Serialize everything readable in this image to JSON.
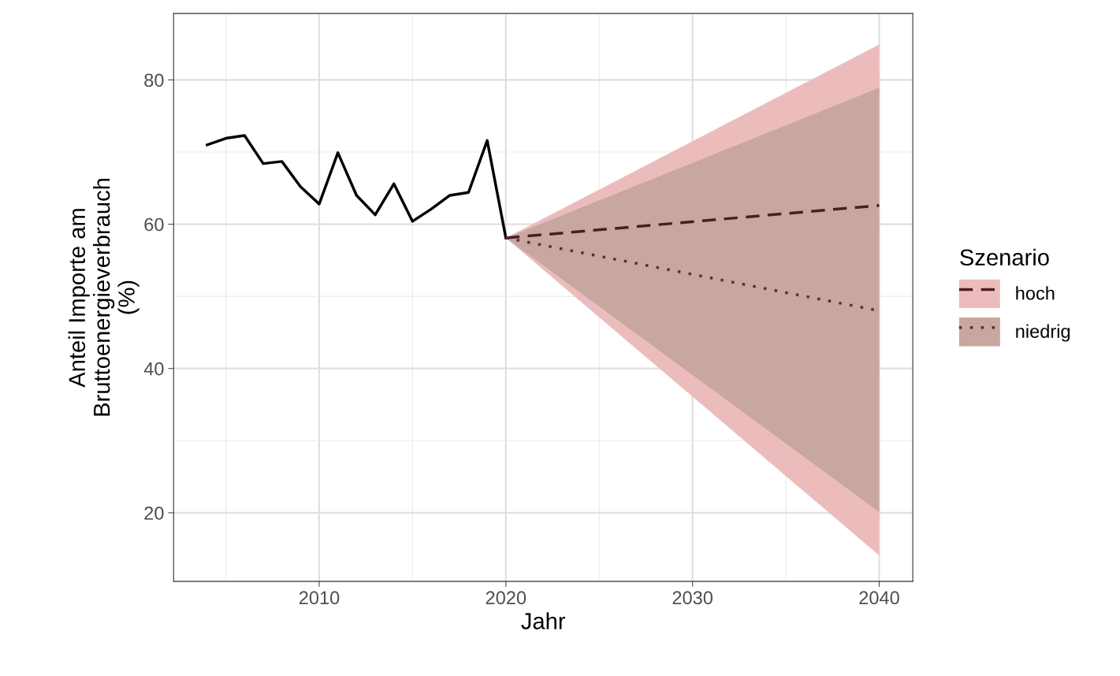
{
  "chart_data": {
    "type": "line",
    "xlabel": "Jahr",
    "ylabel": "Anteil Importe am\nBruttoenergieverbrauch\n(%)",
    "legend_title": "Szenario",
    "xlim": [
      2002.2,
      2041.8
    ],
    "xticks": [
      2010,
      2020,
      2030,
      2040
    ],
    "ylim": [
      10.5,
      89.2
    ],
    "yticks": [
      20,
      40,
      60,
      80
    ],
    "grid": true,
    "legend": "right",
    "series": [
      {
        "color": "#000000",
        "line_style": "solid",
        "x": [
          2004,
          2005,
          2006,
          2007,
          2008,
          2009,
          2010,
          2011,
          2012,
          2013,
          2014,
          2015,
          2016,
          2017,
          2018,
          2019,
          2020
        ],
        "values": [
          71.0,
          71.9,
          72.3,
          68.4,
          68.7,
          65.2,
          62.8,
          69.9,
          64.0,
          61.3,
          65.6,
          60.4,
          62.1,
          64.0,
          64.4,
          71.6,
          58.1
        ]
      },
      {
        "name": "hoch",
        "color": "#4a1f1f",
        "colors": [
          "#ecbcbc",
          "#ecbcbc"
        ],
        "line_style": "dashed",
        "x": [
          2020,
          2040
        ],
        "values": [
          58.1,
          62.6
        ],
        "lower": [
          58.1,
          14.1
        ],
        "upper": [
          58.1,
          84.9
        ]
      },
      {
        "name": "niedrig",
        "color": "#5a3030",
        "colors": [
          "#c7a79f",
          "#c7a79f"
        ],
        "line_style": "dotted",
        "x": [
          2020,
          2040
        ],
        "values": [
          58.1,
          48.0
        ],
        "lower": [
          58.1,
          20.1
        ],
        "upper": [
          58.1,
          78.9
        ]
      }
    ]
  }
}
